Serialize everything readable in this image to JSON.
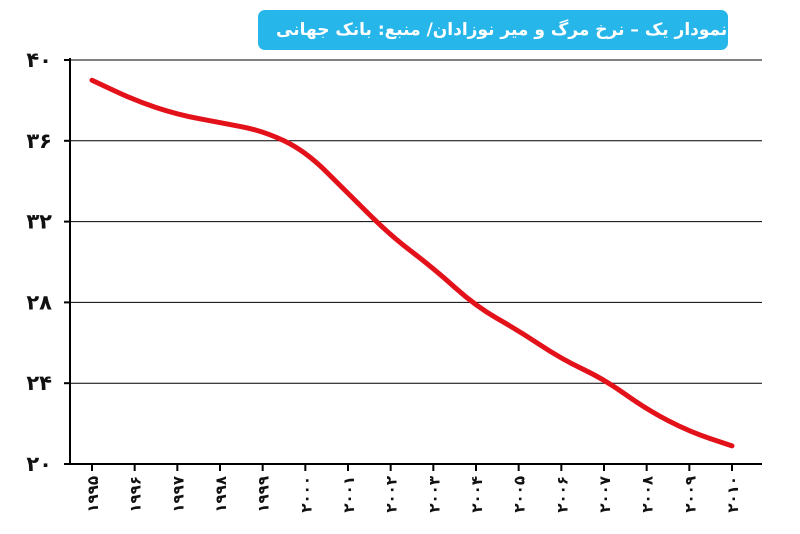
{
  "title": "نمودار یک – نرخ مرگ و میر نوزادان/ منبع: بانک جهانی",
  "colors": {
    "title_bg": "#27b6ea",
    "line": "#e3121a",
    "grid": "#000000"
  },
  "chart_data": {
    "type": "line",
    "title": "نمودار یک – نرخ مرگ و میر نوزادان/ منبع: بانک جهانی",
    "xlabel": "",
    "ylabel": "",
    "x": [
      "۱۹۹۵",
      "۱۹۹۶",
      "۱۹۹۷",
      "۱۹۹۸",
      "۱۹۹۹",
      "۲۰۰۰",
      "۲۰۰۱",
      "۲۰۰۲",
      "۲۰۰۳",
      "۲۰۰۴",
      "۲۰۰۵",
      "۲۰۰۶",
      "۲۰۰۷",
      "۲۰۰۸",
      "۲۰۰۹",
      "۲۰۱۰"
    ],
    "series": [
      {
        "values": [
          39.0,
          38.0,
          37.3,
          36.9,
          36.5,
          35.5,
          33.4,
          31.3,
          29.7,
          27.8,
          26.6,
          25.2,
          24.2,
          22.7,
          21.6,
          20.9
        ]
      }
    ],
    "ylim": [
      20,
      40
    ],
    "yticks": [
      20,
      24,
      28,
      32,
      36,
      40
    ],
    "ytick_labels": [
      "۲۰",
      "۲۴",
      "۲۸",
      "۳۲",
      "۳۶",
      "۴۰"
    ],
    "grid": true,
    "legend": "none"
  }
}
